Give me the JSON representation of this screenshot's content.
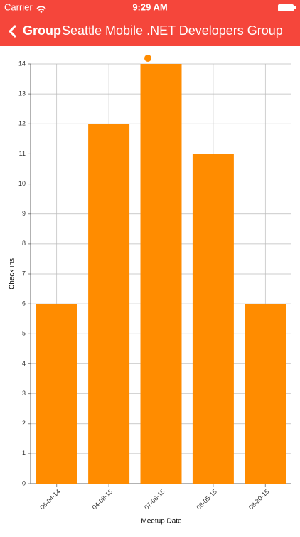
{
  "status_bar": {
    "carrier": "Carrier",
    "time": "9:29 AM"
  },
  "nav_bar": {
    "back": "Group",
    "title": "Seattle Mobile .NET Developers Group"
  },
  "chart_data": {
    "type": "bar",
    "x_label": "Meetup Date",
    "y_label": "Check ins",
    "categories": [
      "06-04-14",
      "04-08-15",
      "07-08-15",
      "08-05-15",
      "08-20-15"
    ],
    "values": [
      6,
      12,
      14,
      11,
      6
    ],
    "color": "#ff8c00",
    "ylim": [
      0,
      14
    ],
    "yticks": [
      0,
      1,
      2,
      3,
      4,
      5,
      6,
      7,
      8,
      9,
      10,
      11,
      12,
      13,
      14
    ],
    "grid": true
  }
}
